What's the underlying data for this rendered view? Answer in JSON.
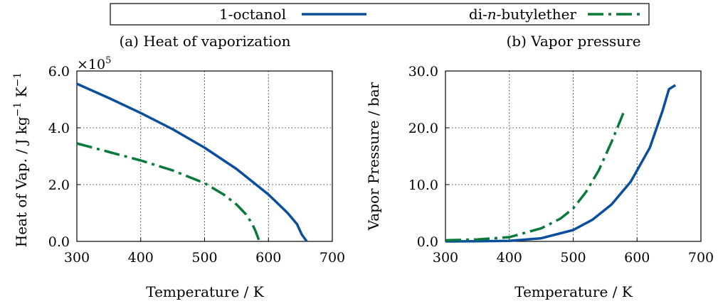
{
  "legend": {
    "entries": [
      {
        "label_parts": [
          "1-octanol"
        ],
        "color": "#0b4f9c",
        "dash": "solid"
      },
      {
        "label_parts": [
          "di-",
          "n",
          "-butylether"
        ],
        "color": "#0a7a3a",
        "dash": "dashdot"
      }
    ],
    "placement": "top-center"
  },
  "colors": {
    "octanol": "#0b4f9c",
    "butylether": "#0a7a3a"
  },
  "chart_data": [
    {
      "type": "line",
      "title": "(a) Heat of vaporization",
      "xlabel": "Temperature / K",
      "ylabel_parts": [
        "Heat of Vap.  / J kg",
        "−1",
        " K",
        "−1"
      ],
      "y_multiplier_parts": [
        "×10",
        "5"
      ],
      "xlim": [
        300,
        700
      ],
      "ylim": [
        0,
        6
      ],
      "xticks": [
        300,
        400,
        500,
        600,
        700
      ],
      "yticks": [
        0,
        2,
        4,
        6
      ],
      "ytick_labels": [
        "0.0",
        "2.0",
        "4.0",
        "6.0"
      ],
      "grid": true,
      "series": [
        {
          "name": "1-octanol",
          "x": [
            300,
            350,
            400,
            450,
            500,
            550,
            600,
            630,
            645,
            652,
            660
          ],
          "y": [
            5.55,
            5.05,
            4.52,
            3.95,
            3.3,
            2.55,
            1.65,
            1.0,
            0.6,
            0.25,
            0.0
          ]
        },
        {
          "name": "di-n-butylether",
          "x": [
            300,
            350,
            400,
            450,
            500,
            530,
            550,
            565,
            575,
            580,
            585
          ],
          "y": [
            3.45,
            3.15,
            2.85,
            2.5,
            2.05,
            1.65,
            1.3,
            0.95,
            0.6,
            0.35,
            0.05
          ]
        }
      ]
    },
    {
      "type": "line",
      "title": "(b) Vapor pressure",
      "xlabel": "Temperature / K",
      "ylabel": "Vapor Pressure / bar",
      "xlim": [
        300,
        700
      ],
      "ylim": [
        0,
        30
      ],
      "xticks": [
        300,
        400,
        500,
        600,
        700
      ],
      "yticks": [
        0,
        10,
        20,
        30
      ],
      "ytick_labels": [
        "0.0",
        "10.0",
        "20.0",
        "30.0"
      ],
      "grid": true,
      "series": [
        {
          "name": "1-octanol",
          "x": [
            300,
            350,
            400,
            450,
            500,
            530,
            560,
            590,
            620,
            640,
            650,
            660
          ],
          "y": [
            0.0,
            0.02,
            0.1,
            0.55,
            2.0,
            3.8,
            6.5,
            10.5,
            16.5,
            23.0,
            26.8,
            27.5
          ]
        },
        {
          "name": "di-n-butylether",
          "x": [
            300,
            350,
            400,
            450,
            480,
            500,
            520,
            540,
            560,
            580
          ],
          "y": [
            0.2,
            0.35,
            0.75,
            2.3,
            4.0,
            5.8,
            8.7,
            12.5,
            17.5,
            23.0
          ]
        }
      ]
    }
  ]
}
